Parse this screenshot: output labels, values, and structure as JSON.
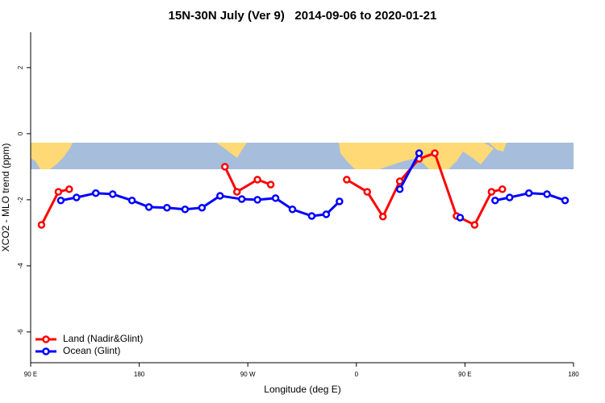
{
  "chart_data": {
    "type": "line",
    "title": "15N-30N July (Ver 9)   2014-09-06 to 2020-01-21",
    "x_label": "Longitude (deg E)",
    "y_label": "XCO2 - MLO trend (ppm)",
    "xlim": [
      90,
      540
    ],
    "xticks": [
      {
        "value": 90,
        "label": "90 E"
      },
      180,
      {
        "value": 270,
        "label": "90 W"
      },
      {
        "value": 360,
        "label": "0"
      },
      {
        "value": 450,
        "label": "90 E"
      },
      {
        "value": 540,
        "label": "180"
      }
    ],
    "ylim": [
      -6.93,
      3.07
    ],
    "yticks": [
      -6,
      -4,
      -2,
      0,
      2
    ],
    "legend": "bottom-left",
    "series": [
      {
        "name": "Land (Nadir&Glint)",
        "color": "#ff0000",
        "x": [
          99,
          113,
          122,
          186,
          251,
          261,
          278,
          289,
          320,
          352,
          369,
          382,
          396,
          412,
          425,
          443,
          458,
          472,
          481
        ],
        "values": [
          -2.76,
          -1.76,
          -1.68,
          null,
          -1.0,
          -1.76,
          -1.39,
          -1.54,
          null,
          -1.39,
          -1.76,
          -2.51,
          -1.44,
          -0.76,
          -0.59,
          -2.49,
          -2.76,
          -1.76,
          -1.68
        ]
      },
      {
        "name": "Ocean (Glint)",
        "color": "#0000ff",
        "x": [
          115,
          128,
          144,
          158,
          174,
          188,
          203,
          218,
          232,
          247,
          265,
          278,
          293,
          307,
          323,
          335,
          346,
          371,
          396,
          412,
          429,
          446,
          460,
          475,
          487,
          503,
          518,
          533
        ],
        "values": [
          -2.02,
          -1.93,
          -1.8,
          -1.83,
          -2.02,
          -2.22,
          -2.24,
          -2.29,
          -2.24,
          -1.88,
          -1.98,
          -2.0,
          -1.95,
          -2.29,
          -2.49,
          -2.44,
          -2.05,
          null,
          -1.68,
          -0.59,
          null,
          -2.54,
          null,
          -2.02,
          -1.93,
          -1.8,
          -1.83,
          -2.02
        ]
      }
    ]
  }
}
